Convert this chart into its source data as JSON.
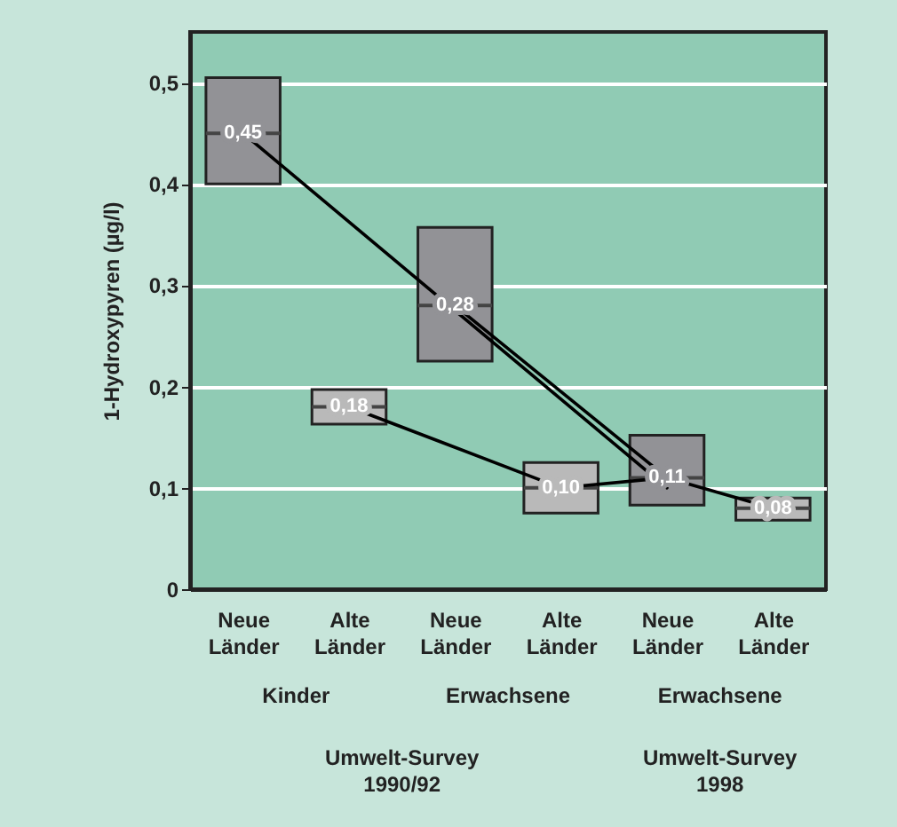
{
  "chart_data": {
    "type": "box",
    "ylabel": "1-Hydroxypyren (µg/l)",
    "categories": [
      "Neue Länder",
      "Alte Länder",
      "Neue Länder",
      "Alte Länder",
      "Neue Länder",
      "Alte Länder"
    ],
    "boxes": [
      {
        "low": 0.4,
        "q1": 0.4,
        "median": 0.45,
        "q3": 0.505,
        "high": 0.505
      },
      {
        "low": 0.163,
        "q1": 0.163,
        "median": 0.18,
        "q3": 0.197,
        "high": 0.197
      },
      {
        "low": 0.225,
        "q1": 0.225,
        "median": 0.28,
        "q3": 0.357,
        "high": 0.357
      },
      {
        "low": 0.075,
        "q1": 0.075,
        "median": 0.1,
        "q3": 0.125,
        "high": 0.125
      },
      {
        "low": 0.083,
        "q1": 0.083,
        "median": 0.11,
        "q3": 0.152,
        "high": 0.152
      },
      {
        "low": 0.068,
        "q1": 0.068,
        "median": 0.08,
        "q3": 0.09,
        "high": 0.09
      }
    ],
    "colors": [
      "#929296",
      "#b9b9b9",
      "#929296",
      "#b9b9b9",
      "#929296",
      "#b9b9b9"
    ],
    "value_labels": [
      "0,45",
      "0,18",
      "0,28",
      "0,10",
      "0,11",
      "0,08"
    ],
    "series": [
      {
        "type": "line",
        "color": "#000000",
        "values": [
          0.45,
          null,
          null,
          null,
          0.1,
          null
        ]
      },
      {
        "type": "line",
        "color": "#000000",
        "values": [
          null,
          null,
          0.28,
          null,
          0.11,
          null
        ]
      },
      {
        "type": "line",
        "color": "#000000",
        "values": [
          null,
          0.18,
          null,
          0.1,
          0.11,
          0.08
        ]
      }
    ],
    "marker": "none",
    "line_style": "solid",
    "ylim": [
      0,
      0.55
    ],
    "yticks": [
      0,
      {
        "value": 0.1,
        "label": "0,1"
      },
      {
        "value": 0.2,
        "label": "0,2"
      },
      {
        "value": 0.3,
        "label": "0,3"
      },
      {
        "value": 0.4,
        "label": "0,4"
      },
      {
        "value": 0.5,
        "label": "0,5"
      }
    ],
    "grid": "y",
    "annotations": [
      "Kinder",
      "Erwachsene",
      "Erwachsene",
      "Umwelt-Survey 1990/92",
      "Umwelt-Survey 1998"
    ]
  }
}
